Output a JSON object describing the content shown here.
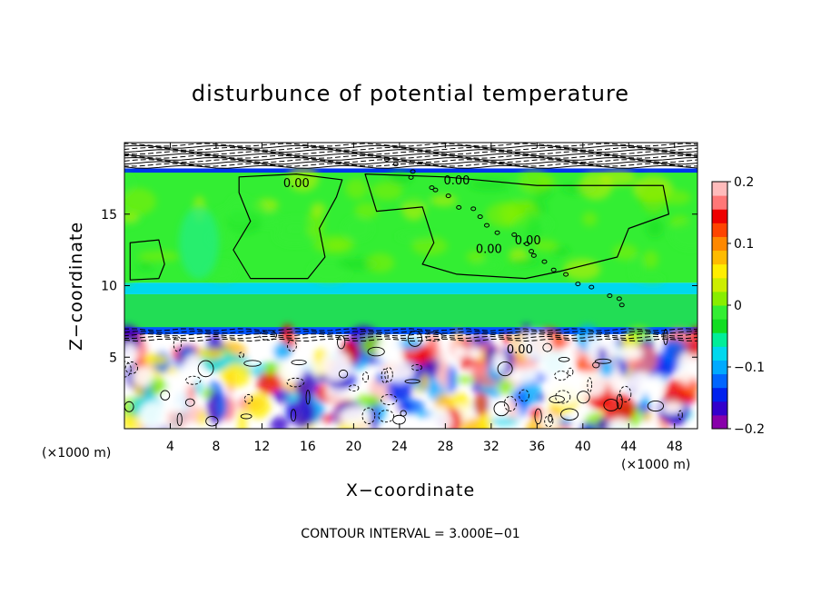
{
  "chart_data": {
    "type": "heatmap",
    "title": "disturbunce of potential temperature",
    "xlabel": "X−coordinate",
    "ylabel": "Z−coordinate",
    "x_unit": "(×1000 m)",
    "z_unit": "(×1000 m)",
    "xlim": [
      0,
      50
    ],
    "zlim": [
      0,
      20
    ],
    "x_ticks": [
      "4",
      "8",
      "12",
      "16",
      "20",
      "24",
      "28",
      "32",
      "36",
      "40",
      "44",
      "48"
    ],
    "x_tick_values": [
      4,
      8,
      12,
      16,
      20,
      24,
      28,
      32,
      36,
      40,
      44,
      48
    ],
    "z_ticks": [
      "5",
      "10",
      "15"
    ],
    "z_tick_values": [
      5,
      10,
      15
    ],
    "colorbar": {
      "range": [
        -0.2,
        0.2
      ],
      "tick_labels": [
        "0.2",
        "0.1",
        "0",
        "−0.1",
        "−0.2"
      ],
      "tick_values": [
        0.2,
        0.1,
        0,
        -0.1,
        -0.2
      ],
      "colors": [
        "#8800aa",
        "#3300cc",
        "#0022ee",
        "#0066ff",
        "#00aaff",
        "#00d8ee",
        "#00ee99",
        "#11dd22",
        "#33ee33",
        "#88ee00",
        "#ccee00",
        "#ffee00",
        "#ffbb00",
        "#ff8800",
        "#ff4400",
        "#ee0000",
        "#ff7777",
        "#ffbbbb"
      ]
    },
    "background_value": 0,
    "layers": [
      {
        "z_range": [
          0,
          7
        ],
        "description_value": "mixed"
      },
      {
        "z_range": [
          7,
          9.4
        ],
        "value": -0.03
      },
      {
        "z_range": [
          9.4,
          10.2
        ],
        "value": -0.08
      },
      {
        "z_range": [
          10.2,
          18
        ],
        "value": 0.0
      },
      {
        "z_range": [
          18,
          20
        ],
        "value": 0.0
      }
    ],
    "contour_labels": [
      {
        "text": "0.00",
        "x": 15.0,
        "z": 17.2
      },
      {
        "text": "0.00",
        "x": 29.0,
        "z": 17.4
      },
      {
        "text": "0.00",
        "x": 31.8,
        "z": 12.6
      },
      {
        "text": "0.00",
        "x": 35.2,
        "z": 13.2
      },
      {
        "text": "0.00",
        "x": 34.5,
        "z": 5.6
      }
    ],
    "footer": "CONTOUR INTERVAL = 3.000E−01"
  }
}
